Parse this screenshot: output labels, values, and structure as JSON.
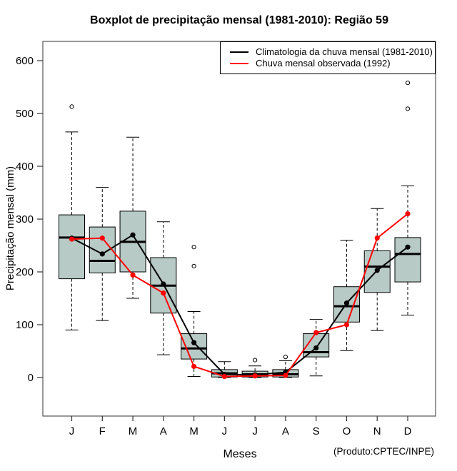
{
  "credit": "(Produto:CPTEC/INPE)",
  "colors": {
    "box_fill": "#b8cac5",
    "box_border": "#000000",
    "axis": "#555555",
    "climatology": "#000000",
    "observed": "#ff0000"
  },
  "legend": {
    "items": [
      {
        "label": "Climatologia da chuva mensal (1981-2010)",
        "color": "#000000"
      },
      {
        "label": "Chuva mensal observada (1992)",
        "color": "#ff0000"
      }
    ]
  },
  "chart_data": {
    "type": "boxplot",
    "title": "Boxplot de precipitação mensal (1981-2010): Região 59",
    "xlabel": "Meses",
    "ylabel": "Precipitação mensal (mm)",
    "categories": [
      "J",
      "F",
      "M",
      "A",
      "M",
      "J",
      "J",
      "A",
      "S",
      "O",
      "N",
      "D"
    ],
    "y_ticks": [
      0,
      100,
      200,
      300,
      400,
      500,
      600
    ],
    "ylim": [
      -70,
      635
    ],
    "grid": false,
    "legend_position": "top-right",
    "boxes": [
      {
        "month": "J",
        "min": 90,
        "q1": 187,
        "median": 265,
        "q3": 308,
        "max": 465,
        "outliers": [
          513
        ]
      },
      {
        "month": "F",
        "min": 108,
        "q1": 198,
        "median": 221,
        "q3": 285,
        "max": 360,
        "outliers": []
      },
      {
        "month": "M",
        "min": 150,
        "q1": 200,
        "median": 257,
        "q3": 315,
        "max": 455,
        "outliers": []
      },
      {
        "month": "A",
        "min": 43,
        "q1": 122,
        "median": 174,
        "q3": 227,
        "max": 295,
        "outliers": []
      },
      {
        "month": "M",
        "min": 2,
        "q1": 35,
        "median": 55,
        "q3": 83,
        "max": 125,
        "outliers": [
          211,
          247
        ]
      },
      {
        "month": "J",
        "min": 0,
        "q1": 1,
        "median": 8,
        "q3": 15,
        "max": 30,
        "outliers": []
      },
      {
        "month": "J",
        "min": 0,
        "q1": 1,
        "median": 6,
        "q3": 12,
        "max": 22,
        "outliers": [
          33
        ]
      },
      {
        "month": "A",
        "min": 0,
        "q1": 1,
        "median": 6,
        "q3": 15,
        "max": 32,
        "outliers": [
          39
        ]
      },
      {
        "month": "S",
        "min": 3,
        "q1": 39,
        "median": 48,
        "q3": 83,
        "max": 110,
        "outliers": []
      },
      {
        "month": "O",
        "min": 51,
        "q1": 105,
        "median": 135,
        "q3": 172,
        "max": 260,
        "outliers": []
      },
      {
        "month": "N",
        "min": 89,
        "q1": 161,
        "median": 210,
        "q3": 240,
        "max": 320,
        "outliers": []
      },
      {
        "month": "D",
        "min": 118,
        "q1": 181,
        "median": 234,
        "q3": 265,
        "max": 363,
        "outliers": [
          509,
          558
        ]
      }
    ],
    "series": [
      {
        "name": "Climatologia da chuva mensal (1981-2010)",
        "color": "#000000",
        "values": [
          264,
          234,
          270,
          177,
          66,
          6,
          5,
          10,
          56,
          141,
          203,
          247
        ]
      },
      {
        "name": "Chuva mensal observada (1992)",
        "color": "#ff0000",
        "values": [
          262,
          264,
          194,
          160,
          21,
          2,
          3,
          4,
          85,
          100,
          264,
          310
        ]
      }
    ]
  }
}
